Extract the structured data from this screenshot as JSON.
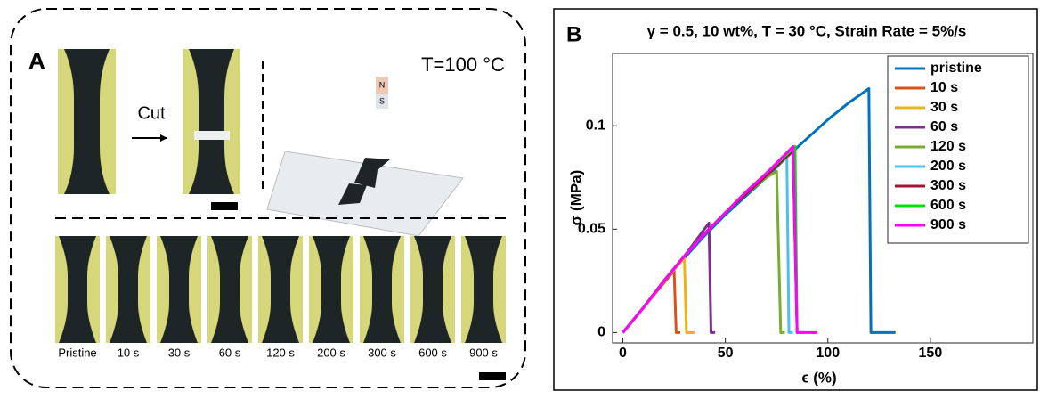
{
  "panel_a": {
    "label": "A",
    "cut": "Cut",
    "temperature": "T=100 °C",
    "magnet_north": "N",
    "magnet_south": "S",
    "labels": [
      "Pristine",
      "10 s",
      "30 s",
      "60 s",
      "120 s",
      "200 s",
      "300 s",
      "600 s",
      "900 s"
    ]
  },
  "chart_data": {
    "type": "line",
    "panel_label": "B",
    "title": "γ = 0.5, 10 wt%, T = 30 °C, Strain Rate = 5%/s",
    "x_label": "ϵ (%)",
    "y_label": "σ (MPa)",
    "xlim": [
      -5,
      200
    ],
    "ylim": [
      -0.005,
      0.135
    ],
    "xticks": [
      0,
      50,
      100,
      150
    ],
    "yticks": [
      0,
      0.05,
      0.1
    ],
    "legend": "upper right",
    "series": [
      {
        "name": "pristine",
        "color": "#0072bd",
        "x": [
          0,
          10,
          20,
          30,
          40,
          50,
          60,
          70,
          80,
          90,
          100,
          110,
          120,
          121,
          133
        ],
        "values": [
          0,
          0.012,
          0.025,
          0.036,
          0.047,
          0.057,
          0.066,
          0.075,
          0.085,
          0.094,
          0.103,
          0.111,
          0.118,
          0,
          0
        ]
      },
      {
        "name": "10 s",
        "color": "#d95319",
        "x": [
          0,
          10,
          20,
          25,
          26,
          28
        ],
        "values": [
          0,
          0.012,
          0.024,
          0.03,
          0,
          0
        ]
      },
      {
        "name": "30 s",
        "color": "#edb120",
        "x": [
          0,
          10,
          20,
          30,
          31,
          35
        ],
        "values": [
          0,
          0.012,
          0.025,
          0.036,
          0,
          0
        ]
      },
      {
        "name": "60 s",
        "color": "#7e2f8e",
        "x": [
          0,
          10,
          20,
          30,
          42,
          43,
          45
        ],
        "values": [
          0,
          0.012,
          0.025,
          0.037,
          0.053,
          0,
          0
        ]
      },
      {
        "name": "120 s",
        "color": "#77ac30",
        "x": [
          0,
          10,
          20,
          30,
          40,
          50,
          60,
          70,
          75,
          77,
          79
        ],
        "values": [
          0,
          0.012,
          0.025,
          0.037,
          0.048,
          0.058,
          0.067,
          0.075,
          0.078,
          0,
          0
        ]
      },
      {
        "name": "200 s",
        "color": "#4dbeee",
        "x": [
          0,
          10,
          20,
          30,
          40,
          50,
          60,
          70,
          80,
          81,
          83
        ],
        "values": [
          0,
          0.012,
          0.025,
          0.037,
          0.048,
          0.058,
          0.067,
          0.076,
          0.085,
          0,
          0
        ]
      },
      {
        "name": "300 s",
        "color": "#a2142f",
        "x": [
          0,
          10,
          20,
          30,
          40,
          50,
          60,
          70,
          83,
          85,
          87
        ],
        "values": [
          0,
          0.012,
          0.025,
          0.037,
          0.048,
          0.058,
          0.067,
          0.076,
          0.088,
          0,
          0
        ]
      },
      {
        "name": "600 s",
        "color": "#00e000",
        "x": [
          0,
          10,
          20,
          30,
          40,
          50,
          60,
          70,
          84,
          85,
          88
        ],
        "values": [
          0,
          0.012,
          0.025,
          0.037,
          0.048,
          0.058,
          0.068,
          0.077,
          0.09,
          0,
          0
        ]
      },
      {
        "name": "900 s",
        "color": "#ff00ff",
        "x": [
          0,
          10,
          20,
          30,
          40,
          50,
          60,
          70,
          83,
          85,
          95
        ],
        "values": [
          0,
          0.012,
          0.025,
          0.037,
          0.048,
          0.058,
          0.068,
          0.077,
          0.09,
          0,
          0
        ]
      }
    ]
  }
}
